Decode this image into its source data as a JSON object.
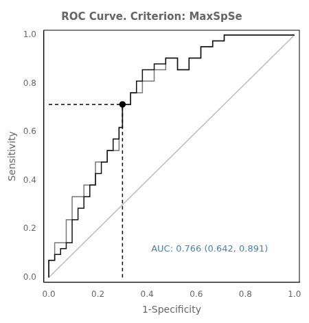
{
  "chart_data": {
    "type": "line",
    "title": "ROC Curve. Criterion: MaxSpSe",
    "xlabel": "1-Specificity",
    "ylabel": "Sensitivity",
    "xlim": [
      -0.02,
      1.02
    ],
    "ylim": [
      -0.02,
      1.02
    ],
    "xticks": [
      {
        "value": 0.0,
        "label": "0.0"
      },
      0.2,
      0.4,
      0.6,
      0.8,
      {
        "value": 1.0,
        "label": "1.0"
      }
    ],
    "yticks": [
      {
        "value": 0.0,
        "label": "0.0"
      },
      0.2,
      0.4,
      0.6,
      0.8,
      {
        "value": 1.0,
        "label": "1.0"
      }
    ],
    "grid": false,
    "annotations": [
      {
        "text": "AUC: 0.766 (0.642, 0.891)",
        "color": "#4682B4"
      }
    ],
    "series": [
      {
        "color": "#bbbbbb",
        "line_style": "solid",
        "x": [
          0,
          1
        ],
        "values": [
          0,
          1
        ]
      },
      {
        "color": "#777777",
        "line_style": "steps",
        "x": [
          0.0,
          0.0,
          0.024,
          0.024,
          0.071,
          0.071,
          0.095,
          0.095,
          0.143,
          0.143,
          0.19,
          0.19,
          0.238,
          0.238,
          0.286,
          0.286,
          0.3,
          0.3,
          0.333,
          0.333,
          0.381,
          0.381,
          0.429,
          0.429,
          0.476,
          0.476,
          0.524,
          0.524,
          0.571,
          0.571,
          0.619,
          0.619,
          0.667,
          0.667,
          0.714,
          0.714,
          0.762,
          0.762,
          0.786,
          0.786,
          0.81,
          0.81,
          1.0
        ],
        "values": [
          0.0,
          0.071,
          0.071,
          0.143,
          0.143,
          0.238,
          0.238,
          0.333,
          0.333,
          0.381,
          0.381,
          0.476,
          0.476,
          0.524,
          0.524,
          0.619,
          0.619,
          0.714,
          0.714,
          0.762,
          0.762,
          0.81,
          0.81,
          0.857,
          0.857,
          0.905,
          0.905,
          0.857,
          0.857,
          0.905,
          0.905,
          0.952,
          0.952,
          0.976,
          0.976,
          1.0,
          1.0,
          1.0,
          1.0,
          1.0,
          1.0,
          1.0,
          1.0
        ]
      },
      {
        "color": "#111111",
        "line_style": "steps",
        "x": [
          0.0,
          0.0,
          0.024,
          0.024,
          0.048,
          0.048,
          0.071,
          0.071,
          0.095,
          0.095,
          0.119,
          0.119,
          0.143,
          0.143,
          0.167,
          0.167,
          0.19,
          0.19,
          0.214,
          0.214,
          0.238,
          0.238,
          0.262,
          0.262,
          0.286,
          0.286,
          0.3,
          0.3,
          0.333,
          0.333,
          0.357,
          0.357,
          0.381,
          0.381,
          0.429,
          0.429,
          0.476,
          0.476,
          0.524,
          0.524,
          0.571,
          0.571,
          0.619,
          0.619,
          0.667,
          0.667,
          0.714,
          0.714,
          0.762,
          0.762,
          0.786,
          0.786,
          0.81,
          0.81,
          1.0
        ],
        "values": [
          0.0,
          0.071,
          0.071,
          0.095,
          0.095,
          0.119,
          0.119,
          0.143,
          0.143,
          0.238,
          0.238,
          0.286,
          0.286,
          0.333,
          0.333,
          0.381,
          0.381,
          0.429,
          0.429,
          0.476,
          0.476,
          0.524,
          0.524,
          0.571,
          0.571,
          0.619,
          0.619,
          0.714,
          0.714,
          0.762,
          0.762,
          0.81,
          0.81,
          0.857,
          0.857,
          0.881,
          0.881,
          0.905,
          0.905,
          0.857,
          0.857,
          0.905,
          0.905,
          0.952,
          0.952,
          0.976,
          0.976,
          1.0,
          1.0,
          1.0,
          1.0,
          1.0,
          1.0,
          1.0,
          1.0
        ]
      },
      {
        "color": "#000000",
        "line_style": "dashed",
        "x": [
          0,
          0.3
        ],
        "values": [
          0.714,
          0.714
        ]
      },
      {
        "color": "#000000",
        "line_style": "dashed",
        "x": [
          0.3,
          0.3
        ],
        "values": [
          0,
          0.714
        ]
      },
      {
        "color": "#000000",
        "marker": "circle",
        "x": [
          0.3
        ],
        "values": [
          0.714
        ]
      }
    ]
  }
}
